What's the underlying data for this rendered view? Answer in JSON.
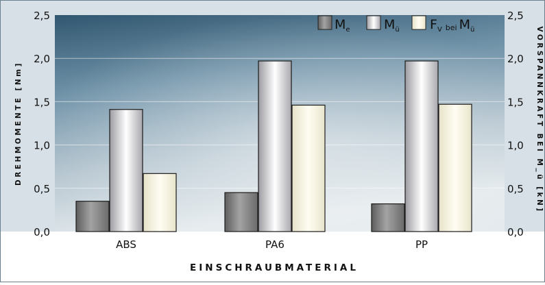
{
  "chart_data": {
    "type": "bar",
    "categories": [
      "ABS",
      "PA6",
      "PP"
    ],
    "series": [
      {
        "name": "M_e",
        "values": [
          0.35,
          0.45,
          0.32
        ]
      },
      {
        "name": "M_ü",
        "values": [
          1.41,
          1.97,
          1.97
        ]
      },
      {
        "name": "F_V bei M_ü",
        "values": [
          0.67,
          1.46,
          1.47
        ]
      }
    ],
    "xlabel": "EINSCHRAUBMATERIAL",
    "ylabel_left": "DREHMOMENTE [Nm]",
    "ylabel_right": "VORSPANNKRAFT BEI M_ü [kN]",
    "ylim": [
      0,
      2.5
    ],
    "yticks": [
      "0,0",
      "0,5",
      "1,0",
      "1,5",
      "2,0",
      "2,5"
    ],
    "grid": true,
    "legend_position": "top-right",
    "colors": {
      "bg_top": "#3d6179",
      "bg_bottom": "#dfe6ea",
      "bar_e": "#8a8a8a",
      "bar_u": "#dcdce0",
      "bar_fv": "#f4f0dc"
    },
    "legend": {
      "e_main": "M",
      "e_sub": "e",
      "u_main": "M",
      "u_sub": "ü",
      "fv_main": "F",
      "fv_sub": "V",
      "fv_mid": "bei",
      "fv_main2": "M",
      "fv_sub2": "ü"
    }
  }
}
